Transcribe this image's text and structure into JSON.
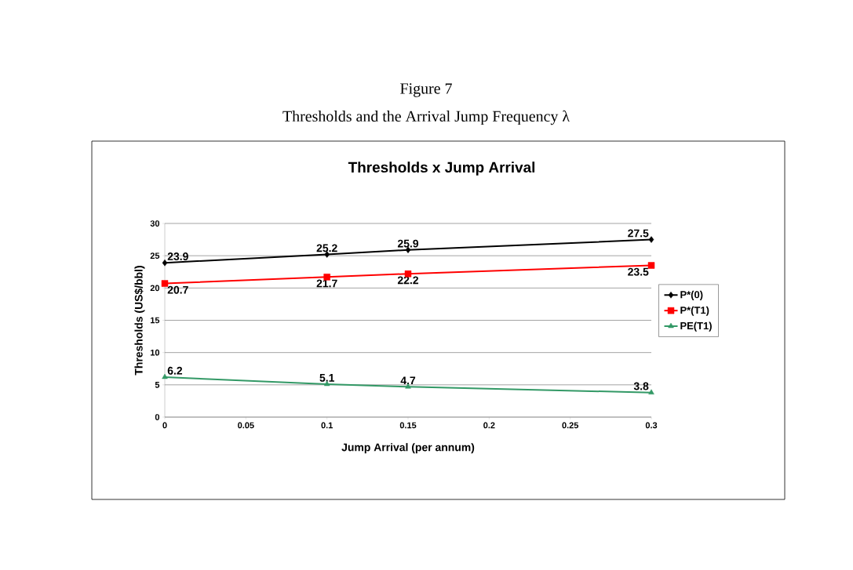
{
  "chart_data": {
    "type": "line",
    "title": "Thresholds x Jump Arrival",
    "annotations": [
      "Figure 7",
      "Thresholds and the Arrival Jump Frequency λ"
    ],
    "xlabel": "Jump Arrival (per annum)",
    "ylabel": "Thresholds (US$/bbl)",
    "x": [
      0,
      0.1,
      0.15,
      0.3
    ],
    "series": [
      {
        "name": "P*(0)",
        "color": "#000000",
        "marker": "diamond",
        "values": [
          23.9,
          25.2,
          25.9,
          27.5
        ]
      },
      {
        "name": "P*(T1)",
        "color": "#ff0000",
        "marker": "square",
        "values": [
          20.7,
          21.7,
          22.2,
          23.5
        ]
      },
      {
        "name": "PE(T1)",
        "color": "#339966",
        "marker": "triangle",
        "values": [
          6.2,
          5.1,
          4.7,
          3.8
        ]
      }
    ],
    "xlim": [
      0,
      0.3
    ],
    "xticks": [
      0,
      0.05,
      0.1,
      0.15,
      0.2,
      0.25,
      0.3
    ],
    "ylim": [
      0,
      30
    ],
    "yticks": [
      0,
      5,
      10,
      15,
      20,
      25,
      30
    ],
    "grid": "y",
    "legend": "right",
    "data_labels": true,
    "line_style": "solid"
  }
}
